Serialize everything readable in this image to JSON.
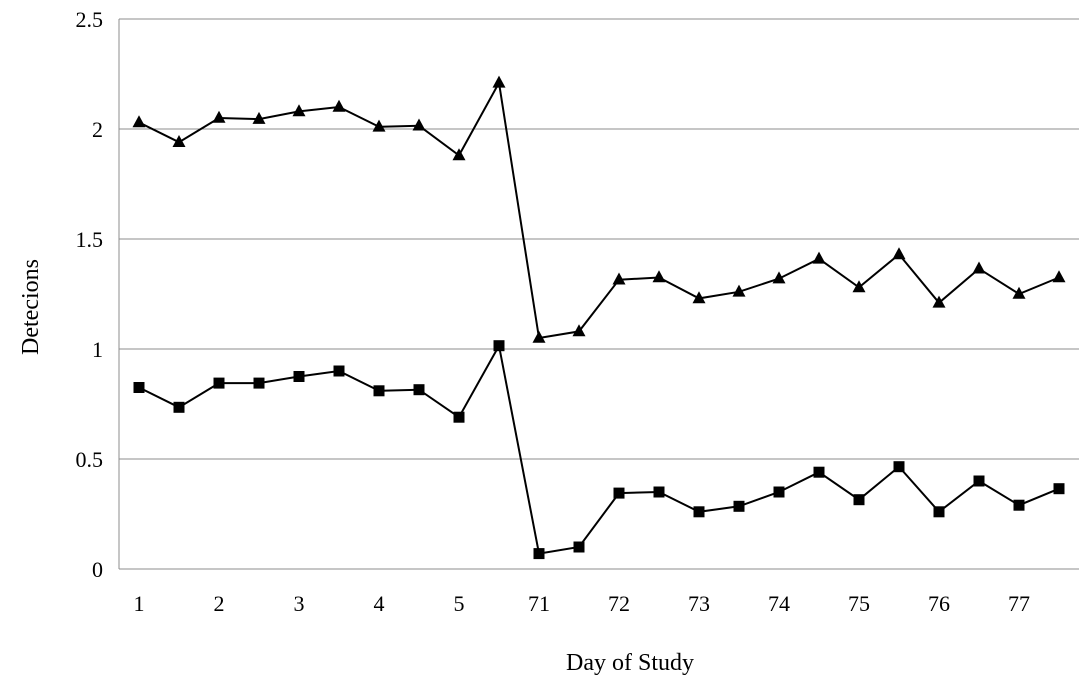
{
  "chart_data": {
    "type": "line",
    "title": "",
    "xlabel": "Day of Study",
    "ylabel": "Detecions",
    "x_tick_labels": [
      "1",
      "2",
      "3",
      "4",
      "5",
      "71",
      "72",
      "73",
      "74",
      "75",
      "76",
      "77"
    ],
    "x": [
      1,
      1.5,
      2,
      2.5,
      3,
      3.5,
      4,
      4.5,
      5,
      5.5,
      71,
      71.5,
      72,
      72.5,
      73,
      73.5,
      74,
      74.5,
      75,
      75.5,
      76,
      76.5,
      77,
      77.5
    ],
    "ylim": [
      0,
      2.5
    ],
    "yticks": [
      0,
      0.5,
      1,
      1.5,
      2,
      2.5
    ],
    "grid": "horizontal",
    "legend": "none",
    "series": [
      {
        "marker": "triangle",
        "values": [
          2.03,
          1.94,
          2.05,
          2.045,
          2.08,
          2.1,
          2.01,
          2.015,
          1.88,
          2.21,
          1.05,
          1.08,
          1.315,
          1.325,
          1.23,
          1.26,
          1.32,
          1.41,
          1.28,
          1.43,
          1.21,
          1.365,
          1.25,
          1.325
        ]
      },
      {
        "marker": "square",
        "values": [
          0.825,
          0.735,
          0.845,
          0.845,
          0.875,
          0.9,
          0.81,
          0.815,
          0.69,
          1.015,
          0.07,
          0.1,
          0.345,
          0.35,
          0.26,
          0.285,
          0.35,
          0.44,
          0.315,
          0.465,
          0.26,
          0.4,
          0.29,
          0.365
        ]
      }
    ],
    "colors": {
      "line": "#000000",
      "grid": "#8c8c8c",
      "axis": "#8c8c8c",
      "background": "#ffffff"
    }
  }
}
